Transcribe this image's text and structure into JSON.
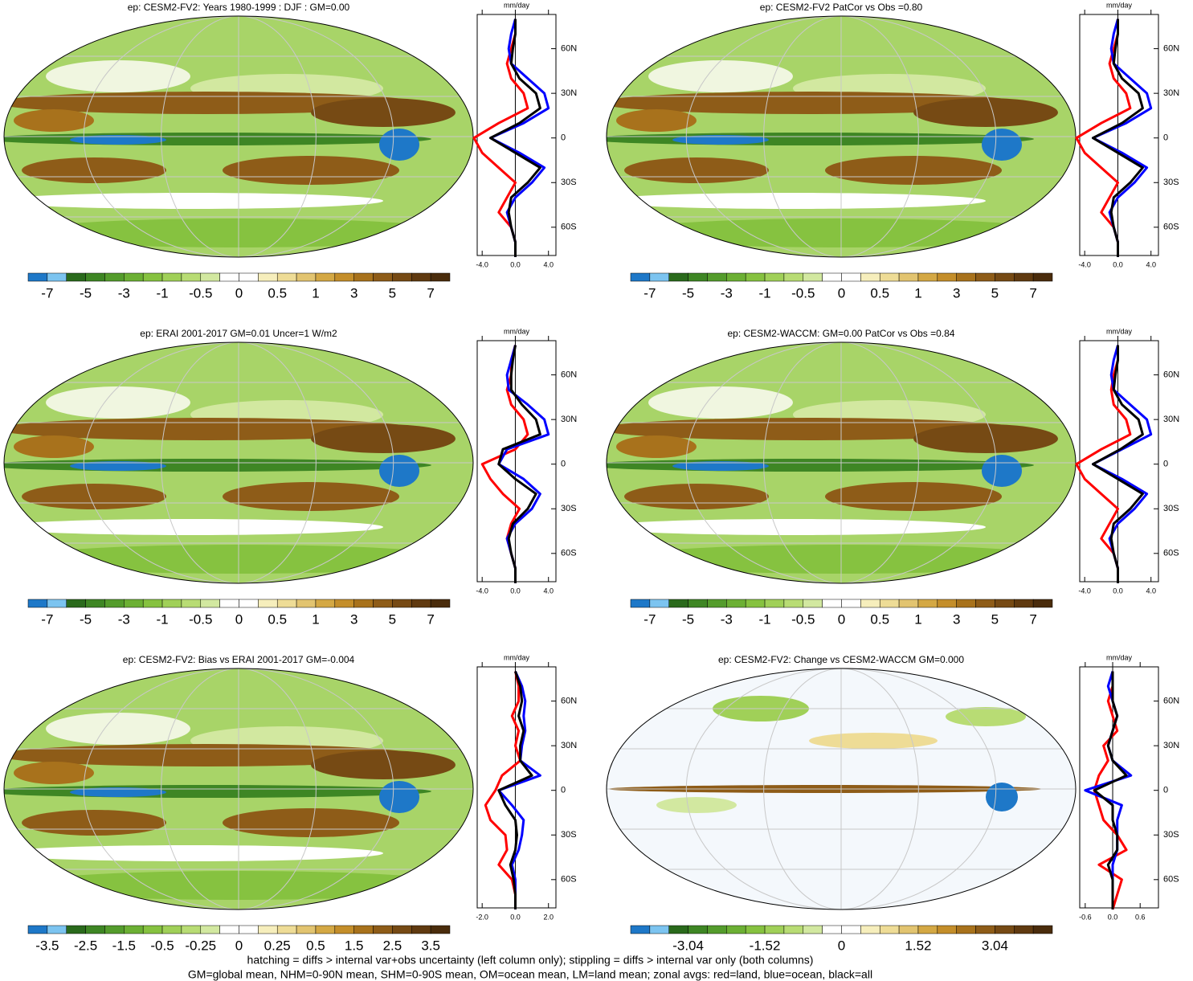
{
  "panels": [
    {
      "title": "ep: CESM2-FV2: Years 1980-1999 : DJF : GM=0.00",
      "colorbar": {
        "colors": [
          "#1e78c8",
          "#7cc4f0",
          "#2a6a1c",
          "#3e8624",
          "#549c2c",
          "#6cb034",
          "#86c240",
          "#a0d058",
          "#b8dc74",
          "#d2e8a0",
          "#ffffff",
          "#ffffff",
          "#f6eebc",
          "#eedc96",
          "#e2c470",
          "#d4a844",
          "#c48e2a",
          "#a8721c",
          "#8e5c18",
          "#764a14",
          "#603a10",
          "#4a2c0c"
        ],
        "labels": [
          -7,
          -5,
          -3,
          -1,
          -0.5,
          0,
          0.5,
          1,
          3,
          5,
          7
        ]
      },
      "zonal": {
        "x_label": "mm/day",
        "xlim": [
          -4.6,
          4.9
        ],
        "ylim": [
          -79,
          83
        ],
        "xticks": [
          {
            "value": -4,
            "label": "-4.0"
          },
          {
            "value": 0,
            "label": "0.0"
          },
          {
            "value": 4,
            "label": "4.0"
          }
        ],
        "yticks": [
          {
            "value": 60,
            "label": "60N"
          },
          {
            "value": 30,
            "label": "30N"
          },
          0,
          {
            "value": -30,
            "label": "30S"
          },
          {
            "value": -60,
            "label": "60S"
          }
        ],
        "lat": [
          80,
          70,
          60,
          50,
          40,
          30,
          20,
          10,
          0,
          -10,
          -20,
          -30,
          -40,
          -50,
          -60,
          -70,
          -80
        ],
        "series": [
          {
            "color": "#ff0000",
            "values": [
              0,
              0,
              -0.5,
              -1,
              -0.5,
              1,
              1.5,
              -2,
              -5,
              -4,
              -2,
              0,
              -1,
              -2,
              -0.5,
              0,
              0
            ]
          },
          {
            "color": "#0000ff",
            "values": [
              0,
              -0.5,
              -0.8,
              -0.5,
              1.5,
              3.5,
              4,
              1,
              -3,
              0.5,
              3.5,
              2,
              0,
              -1,
              -0.5,
              0,
              0
            ]
          },
          {
            "color": "#000000",
            "values": [
              0,
              0,
              -0.3,
              -0.5,
              0.5,
              2.5,
              3,
              0.5,
              -3,
              0,
              3,
              1.5,
              -0.5,
              -0.8,
              -0.5,
              0,
              0
            ]
          }
        ]
      }
    },
    {
      "title": "ep: CESM2-FV2 PatCor vs Obs =0.80",
      "colorbar": {
        "colors": [
          "#1e78c8",
          "#7cc4f0",
          "#2a6a1c",
          "#3e8624",
          "#549c2c",
          "#6cb034",
          "#86c240",
          "#a0d058",
          "#b8dc74",
          "#d2e8a0",
          "#ffffff",
          "#ffffff",
          "#f6eebc",
          "#eedc96",
          "#e2c470",
          "#d4a844",
          "#c48e2a",
          "#a8721c",
          "#8e5c18",
          "#764a14",
          "#603a10",
          "#4a2c0c"
        ],
        "labels": [
          -7,
          -5,
          -3,
          -1,
          -0.5,
          0,
          0.5,
          1,
          3,
          5,
          7
        ]
      },
      "zonal": {
        "x_label": "mm/day",
        "xlim": [
          -4.6,
          4.9
        ],
        "ylim": [
          -79,
          83
        ],
        "xticks": [
          {
            "value": -4,
            "label": "-4.0"
          },
          {
            "value": 0,
            "label": "0.0"
          },
          {
            "value": 4,
            "label": "4.0"
          }
        ],
        "yticks": [
          {
            "value": 60,
            "label": "60N"
          },
          {
            "value": 30,
            "label": "30N"
          },
          0,
          {
            "value": -30,
            "label": "30S"
          },
          {
            "value": -60,
            "label": "60S"
          }
        ],
        "lat": [
          80,
          70,
          60,
          50,
          40,
          30,
          20,
          10,
          0,
          -10,
          -20,
          -30,
          -40,
          -50,
          -60,
          -70,
          -80
        ],
        "series": [
          {
            "color": "#ff0000",
            "values": [
              0,
              0,
              -0.5,
              -1,
              -0.5,
              1,
              1.5,
              -2,
              -5,
              -4,
              -2,
              0,
              -1,
              -2,
              -0.5,
              0,
              0
            ]
          },
          {
            "color": "#0000ff",
            "values": [
              0,
              -0.5,
              -0.8,
              -0.5,
              1.5,
              3.5,
              4,
              1,
              -3,
              0.5,
              3.5,
              2,
              0,
              -1,
              -0.5,
              0,
              0
            ]
          },
          {
            "color": "#000000",
            "values": [
              0,
              0,
              -0.3,
              -0.5,
              0.5,
              2.5,
              3,
              0.5,
              -3,
              0,
              3,
              1.5,
              -0.5,
              -0.8,
              -0.5,
              0,
              0
            ]
          }
        ]
      }
    },
    {
      "title": "ep: ERAI 2001-2017 GM=0.01 Uncer=1 W/m2",
      "colorbar": {
        "colors": [
          "#1e78c8",
          "#7cc4f0",
          "#2a6a1c",
          "#3e8624",
          "#549c2c",
          "#6cb034",
          "#86c240",
          "#a0d058",
          "#b8dc74",
          "#d2e8a0",
          "#ffffff",
          "#ffffff",
          "#f6eebc",
          "#eedc96",
          "#e2c470",
          "#d4a844",
          "#c48e2a",
          "#a8721c",
          "#8e5c18",
          "#764a14",
          "#603a10",
          "#4a2c0c"
        ],
        "labels": [
          -7,
          -5,
          -3,
          -1,
          -0.5,
          0,
          0.5,
          1,
          3,
          5,
          7
        ]
      },
      "zonal": {
        "x_label": "mm/day",
        "xlim": [
          -4.6,
          4.9
        ],
        "ylim": [
          -79,
          83
        ],
        "xticks": [
          {
            "value": -4,
            "label": "-4.0"
          },
          {
            "value": 0,
            "label": "0.0"
          },
          {
            "value": 4,
            "label": "4.0"
          }
        ],
        "yticks": [
          {
            "value": 60,
            "label": "60N"
          },
          {
            "value": 30,
            "label": "30N"
          },
          0,
          {
            "value": -30,
            "label": "30S"
          },
          {
            "value": -60,
            "label": "60S"
          }
        ],
        "lat": [
          80,
          70,
          60,
          50,
          40,
          30,
          20,
          10,
          0,
          -10,
          -20,
          -30,
          -40,
          -50,
          -60,
          -70,
          -80
        ],
        "series": [
          {
            "color": "#ff0000",
            "values": [
              0,
              -0.5,
              -0.5,
              -1,
              -0.5,
              1,
              1.5,
              0,
              -4,
              -3,
              -1.5,
              0.5,
              -0.5,
              -1,
              -0.5,
              0,
              0
            ]
          },
          {
            "color": "#0000ff",
            "values": [
              0,
              -0.5,
              -1,
              -0.8,
              1.5,
              3.5,
              4,
              -1,
              -2,
              1,
              3,
              2,
              0,
              -1,
              -0.5,
              0,
              0
            ]
          },
          {
            "color": "#000000",
            "values": [
              0,
              -0.3,
              -0.5,
              -0.5,
              0.8,
              2.5,
              3,
              -1.5,
              -2,
              0,
              2.5,
              1.5,
              -0.3,
              -0.8,
              -0.5,
              0,
              0
            ]
          }
        ]
      }
    },
    {
      "title": "ep: CESM2-WACCM: GM=0.00 PatCor vs Obs =0.84",
      "colorbar": {
        "colors": [
          "#1e78c8",
          "#7cc4f0",
          "#2a6a1c",
          "#3e8624",
          "#549c2c",
          "#6cb034",
          "#86c240",
          "#a0d058",
          "#b8dc74",
          "#d2e8a0",
          "#ffffff",
          "#ffffff",
          "#f6eebc",
          "#eedc96",
          "#e2c470",
          "#d4a844",
          "#c48e2a",
          "#a8721c",
          "#8e5c18",
          "#764a14",
          "#603a10",
          "#4a2c0c"
        ],
        "labels": [
          -7,
          -5,
          -3,
          -1,
          -0.5,
          0,
          0.5,
          1,
          3,
          5,
          7
        ]
      },
      "zonal": {
        "x_label": "mm/day",
        "xlim": [
          -4.6,
          4.9
        ],
        "ylim": [
          -79,
          83
        ],
        "xticks": [
          {
            "value": -4,
            "label": "-4.0"
          },
          {
            "value": 0,
            "label": "0.0"
          },
          {
            "value": 4,
            "label": "4.0"
          }
        ],
        "yticks": [
          {
            "value": 60,
            "label": "60N"
          },
          {
            "value": 30,
            "label": "30N"
          },
          0,
          {
            "value": -30,
            "label": "30S"
          },
          {
            "value": -60,
            "label": "60S"
          }
        ],
        "lat": [
          80,
          70,
          60,
          50,
          40,
          30,
          20,
          10,
          0,
          -10,
          -20,
          -30,
          -40,
          -50,
          -60,
          -70,
          -80
        ],
        "series": [
          {
            "color": "#ff0000",
            "values": [
              0,
              0,
              -0.5,
              -0.8,
              -0.5,
              1,
              1.5,
              -2,
              -5,
              -4,
              -2,
              0,
              -1,
              -2,
              -0.5,
              0,
              0
            ]
          },
          {
            "color": "#0000ff",
            "values": [
              0,
              -0.5,
              -0.8,
              -0.5,
              1.5,
              3.5,
              4,
              0.5,
              -3,
              0.5,
              3.5,
              2,
              0,
              -1,
              -0.5,
              0,
              0
            ]
          },
          {
            "color": "#000000",
            "values": [
              0,
              0,
              -0.3,
              -0.5,
              0.5,
              2.5,
              3,
              0.3,
              -3,
              0,
              3,
              1.5,
              -0.5,
              -0.8,
              -0.5,
              0,
              0
            ]
          }
        ]
      }
    },
    {
      "title": "ep: CESM2-FV2: Bias vs ERAI 2001-2017 GM=-0.004",
      "colorbar": {
        "colors": [
          "#1e78c8",
          "#7cc4f0",
          "#2a6a1c",
          "#3e8624",
          "#549c2c",
          "#6cb034",
          "#86c240",
          "#a0d058",
          "#b8dc74",
          "#d2e8a0",
          "#ffffff",
          "#ffffff",
          "#f6eebc",
          "#eedc96",
          "#e2c470",
          "#d4a844",
          "#c48e2a",
          "#a8721c",
          "#8e5c18",
          "#764a14",
          "#603a10",
          "#4a2c0c"
        ],
        "labels": [
          -3.5,
          -2.5,
          -1.5,
          -0.5,
          -0.25,
          0,
          0.25,
          0.5,
          1.5,
          2.5,
          3.5
        ]
      },
      "zonal": {
        "x_label": "mm/day",
        "xlim": [
          -2.3,
          2.45
        ],
        "ylim": [
          -79,
          83
        ],
        "xticks": [
          {
            "value": -2,
            "label": "-2.0"
          },
          {
            "value": 0,
            "label": "0.0"
          },
          {
            "value": 2,
            "label": "2.0"
          }
        ],
        "yticks": [
          {
            "value": 60,
            "label": "60N"
          },
          {
            "value": 30,
            "label": "30N"
          },
          0,
          {
            "value": -30,
            "label": "30S"
          },
          {
            "value": -60,
            "label": "60S"
          }
        ],
        "lat": [
          80,
          70,
          60,
          50,
          40,
          30,
          20,
          10,
          0,
          -10,
          -20,
          -30,
          -40,
          -50,
          -60,
          -70,
          -80
        ],
        "series": [
          {
            "color": "#ff0000",
            "values": [
              0,
              0.2,
              0.2,
              -0.2,
              0.2,
              0,
              0.3,
              -0.8,
              -1.2,
              -1.8,
              -1.5,
              -0.6,
              -0.5,
              -1,
              -0.2,
              0,
              0
            ]
          },
          {
            "color": "#0000ff",
            "values": [
              0,
              0.4,
              0.6,
              0.5,
              0.6,
              0.4,
              0.3,
              1.5,
              -1,
              -0.2,
              0.5,
              0.4,
              0.2,
              -0.2,
              0,
              0,
              0
            ]
          },
          {
            "color": "#000000",
            "values": [
              0,
              0.3,
              0.4,
              0.2,
              0.5,
              0.3,
              0.3,
              1,
              -1,
              -0.6,
              0,
              0.1,
              0,
              -0.3,
              -0.1,
              0,
              0
            ]
          }
        ]
      }
    },
    {
      "title": "ep: CESM2-FV2: Change vs CESM2-WACCM GM=0.000",
      "colorbar": {
        "colors": [
          "#1e78c8",
          "#7cc4f0",
          "#2a6a1c",
          "#3e8624",
          "#549c2c",
          "#6cb034",
          "#86c240",
          "#a0d058",
          "#b8dc74",
          "#d2e8a0",
          "#ffffff",
          "#ffffff",
          "#f6eebc",
          "#eedc96",
          "#e2c470",
          "#d4a844",
          "#c48e2a",
          "#a8721c",
          "#8e5c18",
          "#764a14",
          "#603a10",
          "#4a2c0c"
        ],
        "labels": [
          -3.04,
          -1.52,
          0,
          1.52,
          3.04
        ]
      },
      "zonal": {
        "x_label": "mm/day",
        "xlim": [
          -0.72,
          1.0
        ],
        "ylim": [
          -79,
          83
        ],
        "xticks": [
          {
            "value": -0.6,
            "label": "-0.6"
          },
          {
            "value": 0,
            "label": "0.0"
          },
          {
            "value": 0.6,
            "label": "0.6"
          }
        ],
        "yticks": [
          {
            "value": 60,
            "label": "60N"
          },
          {
            "value": 30,
            "label": "30N"
          },
          0,
          {
            "value": -30,
            "label": "30S"
          },
          {
            "value": -60,
            "label": "60S"
          }
        ],
        "lat": [
          80,
          70,
          60,
          50,
          40,
          30,
          20,
          10,
          0,
          -10,
          -20,
          -30,
          -40,
          -50,
          -60,
          -70,
          -80
        ],
        "series": [
          {
            "color": "#ff0000",
            "values": [
              0,
              0,
              -0.1,
              0,
              0.1,
              -0.2,
              -0.1,
              -0.3,
              -0.4,
              -0.3,
              -0.2,
              0.1,
              0.3,
              -0.3,
              0.2,
              0.1,
              0
            ]
          },
          {
            "color": "#0000ff",
            "values": [
              0,
              -0.1,
              0,
              0.1,
              0,
              -0.1,
              0,
              0.4,
              -0.6,
              0.2,
              0.1,
              0.1,
              0.1,
              0,
              0,
              0,
              0
            ]
          },
          {
            "color": "#000000",
            "values": [
              0,
              0,
              0,
              0.1,
              0,
              -0.1,
              0,
              0.3,
              -0.4,
              0,
              0,
              0.1,
              0.1,
              -0.1,
              0,
              0,
              0
            ]
          }
        ]
      }
    }
  ],
  "footer": [
    "hatching = diffs > internal var+obs uncertainty (left column only); stippling = diffs > internal var only (both columns)",
    "GM=global mean, NHM=0-90N mean, SHM=0-90S mean, OM=ocean mean, LM=land mean; zonal avgs: red=land, blue=ocean, black=all"
  ]
}
